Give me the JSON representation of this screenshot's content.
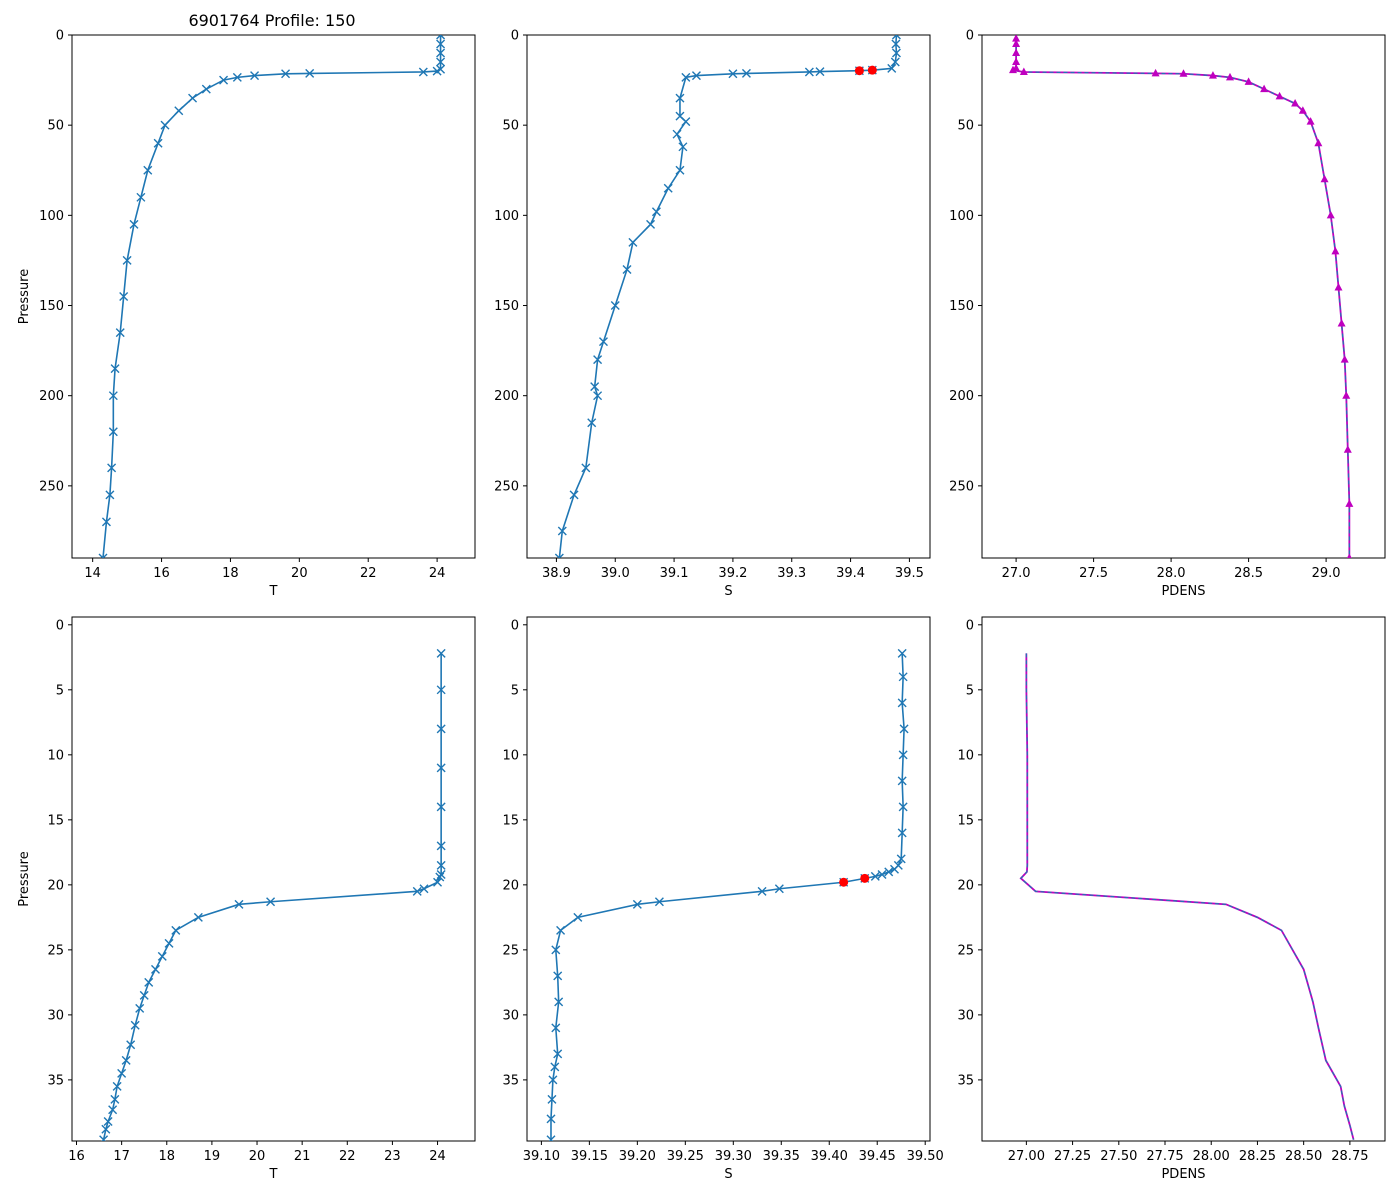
{
  "figure": {
    "title": "6901764 Profile: 150",
    "colors": {
      "series": "#1f77b4",
      "flag": "#ff0000",
      "density": "#bf00bf",
      "density_dash": "#1f77b4",
      "axis": "#000000",
      "background": "#ffffff"
    }
  },
  "chart_data": [
    {
      "id": "p1",
      "type": "line",
      "title": "6901764 Profile: 150",
      "xlabel": "T",
      "ylabel": "Pressure",
      "xlim": [
        13.4,
        25.1
      ],
      "ylim": [
        290,
        0
      ],
      "xticks": [
        14,
        16,
        18,
        20,
        22,
        24
      ],
      "xtick_labels": [
        "14",
        "16",
        "18",
        "20",
        "22",
        "24"
      ],
      "yticks": [
        0,
        50,
        100,
        150,
        200,
        250
      ],
      "ytick_labels": [
        "0",
        "50",
        "100",
        "150",
        "200",
        "250"
      ],
      "marker": "x",
      "series": [
        {
          "name": "T",
          "x": [
            24.1,
            24.1,
            24.1,
            24.1,
            24.1,
            24.0,
            23.6,
            20.3,
            19.6,
            18.7,
            18.2,
            17.8,
            17.3,
            16.9,
            16.5,
            16.1,
            15.9,
            15.6,
            15.4,
            15.2,
            15.0,
            14.9,
            14.8,
            14.65,
            14.6,
            14.6,
            14.55,
            14.5,
            14.4,
            14.3
          ],
          "y": [
            0,
            5,
            10,
            15,
            19,
            20,
            20.5,
            21.3,
            21.5,
            22.5,
            23.5,
            25,
            30,
            35,
            42,
            50,
            60,
            75,
            90,
            105,
            125,
            145,
            165,
            185,
            200,
            220,
            240,
            255,
            270,
            290
          ]
        }
      ]
    },
    {
      "id": "p2",
      "type": "line",
      "title": "",
      "xlabel": "S",
      "ylabel": "",
      "xlim": [
        38.85,
        39.535
      ],
      "ylim": [
        290,
        0
      ],
      "xticks": [
        38.9,
        39.0,
        39.1,
        39.2,
        39.3,
        39.4,
        39.5
      ],
      "xtick_labels": [
        "38.9",
        "39.0",
        "39.1",
        "39.2",
        "39.3",
        "39.4",
        "39.5"
      ],
      "yticks": [
        0,
        50,
        100,
        150,
        200,
        250
      ],
      "ytick_labels": [
        "0",
        "50",
        "100",
        "150",
        "200",
        "250"
      ],
      "marker": "x",
      "series": [
        {
          "name": "S",
          "x": [
            39.478,
            39.477,
            39.478,
            39.476,
            39.47,
            39.437,
            39.415,
            39.348,
            39.33,
            39.223,
            39.2,
            39.138,
            39.12,
            39.11,
            39.11,
            39.12,
            39.105,
            39.115,
            39.11,
            39.09,
            39.07,
            39.06,
            39.03,
            39.02,
            39.0,
            38.98,
            38.97,
            38.965,
            38.97,
            38.96,
            38.95,
            38.93,
            38.91,
            38.905
          ],
          "y": [
            0,
            5,
            10,
            15,
            18.5,
            19.5,
            19.8,
            20.3,
            20.5,
            21.3,
            21.5,
            22.5,
            23.5,
            35,
            45,
            48,
            55,
            62,
            75,
            85,
            98,
            105,
            115,
            130,
            150,
            170,
            180,
            195,
            200,
            215,
            240,
            255,
            275,
            290
          ]
        }
      ],
      "flagged": {
        "x": [
          39.437,
          39.415
        ],
        "y": [
          19.5,
          19.8
        ]
      }
    },
    {
      "id": "p3",
      "type": "line",
      "title": "",
      "xlabel": "PDENS",
      "ylabel": "",
      "xlim": [
        26.78,
        29.38
      ],
      "ylim": [
        290,
        0
      ],
      "xticks": [
        27.0,
        27.5,
        28.0,
        28.5,
        29.0
      ],
      "xtick_labels": [
        "27.0",
        "27.5",
        "28.0",
        "28.5",
        "29.0"
      ],
      "yticks": [
        0,
        50,
        100,
        150,
        200,
        250
      ],
      "ytick_labels": [
        "0",
        "50",
        "100",
        "150",
        "200",
        "250"
      ],
      "marker": "triangle",
      "series": [
        {
          "name": "PDENS",
          "x": [
            27.0,
            27.0,
            27.0,
            27.0,
            27.0,
            26.98,
            27.05,
            27.9,
            28.08,
            28.27,
            28.38,
            28.5,
            28.6,
            28.7,
            28.8,
            28.85,
            28.9,
            28.95,
            28.99,
            29.03,
            29.06,
            29.08,
            29.1,
            29.12,
            29.13,
            29.14,
            29.15,
            29.15
          ],
          "y": [
            2,
            5,
            10,
            15,
            18.5,
            19.5,
            20.5,
            21.3,
            21.5,
            22.5,
            23.5,
            26,
            30,
            34,
            38,
            42,
            48,
            60,
            80,
            100,
            120,
            140,
            160,
            180,
            200,
            230,
            260,
            290
          ]
        }
      ]
    },
    {
      "id": "p4",
      "type": "line",
      "title": "",
      "xlabel": "T",
      "ylabel": "Pressure",
      "xlim": [
        15.9,
        24.83
      ],
      "ylim": [
        39.7,
        -0.6
      ],
      "xticks": [
        16,
        17,
        18,
        19,
        20,
        21,
        22,
        23,
        24
      ],
      "xtick_labels": [
        "16",
        "17",
        "18",
        "19",
        "20",
        "21",
        "22",
        "23",
        "24"
      ],
      "yticks": [
        0,
        5,
        10,
        15,
        20,
        25,
        30,
        35
      ],
      "ytick_labels": [
        "0",
        "5",
        "10",
        "15",
        "20",
        "25",
        "30",
        "35"
      ],
      "marker": "x",
      "series": [
        {
          "name": "T",
          "x": [
            24.08,
            24.08,
            24.08,
            24.08,
            24.08,
            24.08,
            24.08,
            24.08,
            24.05,
            24.0,
            23.7,
            23.55,
            20.3,
            19.6,
            18.7,
            18.2,
            18.05,
            17.9,
            17.75,
            17.6,
            17.5,
            17.4,
            17.3,
            17.2,
            17.1,
            17.0,
            16.9,
            16.85,
            16.8,
            16.7,
            16.65,
            16.6
          ],
          "y": [
            2.2,
            5,
            8,
            11,
            14,
            17,
            18.5,
            19.2,
            19.4,
            19.8,
            20.3,
            20.5,
            21.3,
            21.5,
            22.5,
            23.5,
            24.5,
            25.5,
            26.5,
            27.5,
            28.5,
            29.5,
            30.8,
            32.3,
            33.5,
            34.5,
            35.5,
            36.5,
            37.3,
            38.2,
            38.8,
            39.6
          ]
        }
      ]
    },
    {
      "id": "p5",
      "type": "line",
      "title": "",
      "xlabel": "S",
      "ylabel": "",
      "xlim": [
        39.085,
        39.505
      ],
      "ylim": [
        39.7,
        -0.6
      ],
      "xticks": [
        39.1,
        39.15,
        39.2,
        39.25,
        39.3,
        39.35,
        39.4,
        39.45,
        39.5
      ],
      "xtick_labels": [
        "39.10",
        "39.15",
        "39.20",
        "39.25",
        "39.30",
        "39.35",
        "39.40",
        "39.45",
        "39.50"
      ],
      "yticks": [
        0,
        5,
        10,
        15,
        20,
        25,
        30,
        35
      ],
      "ytick_labels": [
        "0",
        "5",
        "10",
        "15",
        "20",
        "25",
        "30",
        "35"
      ],
      "marker": "x",
      "series": [
        {
          "name": "S",
          "x": [
            39.476,
            39.477,
            39.476,
            39.478,
            39.477,
            39.476,
            39.477,
            39.476,
            39.475,
            39.472,
            39.468,
            39.462,
            39.455,
            39.448,
            39.437,
            39.415,
            39.348,
            39.33,
            39.223,
            39.2,
            39.138,
            39.12,
            39.115,
            39.117,
            39.118,
            39.115,
            39.117,
            39.114,
            39.112,
            39.111,
            39.11,
            39.11
          ],
          "y": [
            2.2,
            4,
            6,
            8,
            10,
            12,
            14,
            16,
            18,
            18.5,
            18.8,
            19.0,
            19.2,
            19.35,
            19.5,
            19.8,
            20.3,
            20.5,
            21.3,
            21.5,
            22.5,
            23.5,
            25,
            27,
            29,
            31,
            33,
            34,
            35,
            36.5,
            38,
            39.6
          ]
        }
      ],
      "flagged": {
        "x": [
          39.437,
          39.415
        ],
        "y": [
          19.5,
          19.8
        ]
      }
    },
    {
      "id": "p6",
      "type": "line",
      "title": "",
      "xlabel": "PDENS",
      "ylabel": "",
      "xlim": [
        26.76,
        28.94
      ],
      "ylim": [
        39.7,
        -0.6
      ],
      "xticks": [
        27.0,
        27.25,
        27.5,
        27.75,
        28.0,
        28.25,
        28.5,
        28.75
      ],
      "xtick_labels": [
        "27.00",
        "27.25",
        "27.50",
        "27.75",
        "28.00",
        "28.25",
        "28.50",
        "28.75"
      ],
      "yticks": [
        0,
        5,
        10,
        15,
        20,
        25,
        30,
        35
      ],
      "ytick_labels": [
        "0",
        "5",
        "10",
        "15",
        "20",
        "25",
        "30",
        "35"
      ],
      "marker": "none",
      "series": [
        {
          "name": "PDENS",
          "x": [
            27.0,
            27.0,
            27.005,
            27.005,
            27.005,
            27.003,
            26.97,
            27.01,
            27.05,
            28.08,
            28.25,
            28.38,
            28.5,
            28.55,
            28.58,
            28.62,
            28.7,
            28.72,
            28.75,
            28.77
          ],
          "y": [
            2.2,
            5,
            10,
            15,
            18.5,
            19.0,
            19.5,
            20.0,
            20.5,
            21.5,
            22.5,
            23.5,
            26.5,
            29.0,
            31.0,
            33.5,
            35.5,
            37.0,
            38.5,
            39.6
          ]
        }
      ]
    }
  ]
}
